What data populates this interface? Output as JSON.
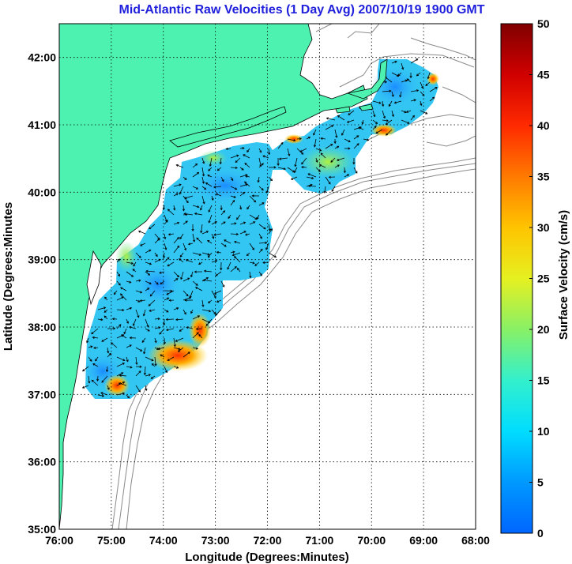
{
  "chart_data": {
    "type": "heatmap",
    "title": "Mid-Atlantic Raw Velocities (1 Day Avg) 2007/10/19 1900 GMT",
    "xlabel": "Longitude (Degrees:Minutes)",
    "ylabel": "Latitude (Degrees:Minutes",
    "x_ticks": [
      "76:00",
      "75:00",
      "74:00",
      "73:00",
      "72:00",
      "71:00",
      "70:00",
      "69:00",
      "68:00"
    ],
    "y_ticks": [
      "35:00",
      "36:00",
      "37:00",
      "38:00",
      "39:00",
      "40:00",
      "41:00",
      "42:00"
    ],
    "xlim": [
      -76,
      -68
    ],
    "ylim": [
      35,
      42.5
    ],
    "grid": true,
    "colorbar": {
      "label": "Surface Velocity (cm/s)",
      "min": 0,
      "max": 50,
      "ticks": [
        "0",
        "5",
        "10",
        "15",
        "20",
        "25",
        "30",
        "35",
        "40",
        "45",
        "50"
      ]
    },
    "colors": {
      "land": "#4df2b0",
      "coast_contour": "#808080",
      "title": "#1f1fdc",
      "field_base": "#33c6f2"
    }
  }
}
